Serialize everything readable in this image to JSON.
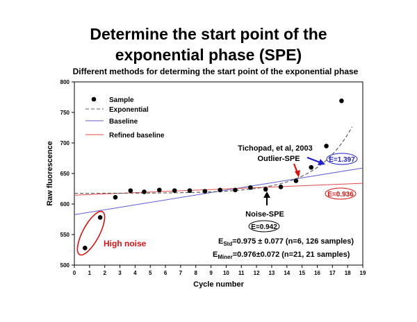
{
  "slide": {
    "title_line1": "Determine the start point of the",
    "title_line2": "exponential phase (SPE)"
  },
  "chart_data": {
    "type": "scatter",
    "title": "Different methods for determing the start point of the exponential phase",
    "xlabel": "Cycle number",
    "ylabel": "Raw fluorescence",
    "xlim": [
      0,
      19
    ],
    "ylim": [
      500,
      800
    ],
    "x_ticks": [
      0,
      1,
      2,
      3,
      4,
      5,
      6,
      7,
      8,
      9,
      10,
      11,
      12,
      13,
      14,
      15,
      16,
      17,
      18,
      19
    ],
    "y_ticks": [
      500,
      550,
      600,
      650,
      700,
      750,
      800
    ],
    "legend_position": "top-left",
    "legend": [
      {
        "label": "Sample",
        "marker": "dot",
        "color": "#000000"
      },
      {
        "label": "Exponential",
        "marker": "dashed-line",
        "color": "#555555"
      },
      {
        "label": "Baseline",
        "marker": "line",
        "color": "#5b5bd6"
      },
      {
        "label": "Refined baseline",
        "marker": "line",
        "color": "#e04848"
      }
    ],
    "series": [
      {
        "name": "Sample",
        "points": [
          [
            0.7,
            528
          ],
          [
            1.7,
            578
          ],
          [
            2.7,
            611
          ],
          [
            3.7,
            622
          ],
          [
            4.6,
            620
          ],
          [
            5.6,
            623
          ],
          [
            6.6,
            622
          ],
          [
            7.6,
            622
          ],
          [
            8.6,
            621
          ],
          [
            9.6,
            623
          ],
          [
            10.6,
            623
          ],
          [
            11.6,
            627
          ],
          [
            12.6,
            624
          ],
          [
            13.6,
            628
          ],
          [
            14.6,
            638
          ],
          [
            15.6,
            660
          ],
          [
            16.6,
            695
          ],
          [
            17.6,
            769
          ]
        ]
      },
      {
        "name": "Exponential",
        "style": "dashed",
        "model": {
          "base": 617.5,
          "amp": 0.43,
          "rate": 0.41,
          "shift": 4.8
        },
        "x_range": [
          0,
          18.3
        ]
      },
      {
        "name": "Baseline",
        "line": [
          [
            0,
            582.5
          ],
          [
            19,
            659
          ]
        ]
      },
      {
        "name": "Refined baseline",
        "line": [
          [
            0,
            614.5
          ],
          [
            19,
            634
          ]
        ]
      }
    ],
    "annotations": {
      "high_noise": "High noise",
      "tichopad": "Tichopad, et al, 2003",
      "outlier_spe": "Outlier-SPE",
      "noise_spe": "Noise-SPE",
      "e_blue": "E=1.397",
      "e_red": "E=0.936",
      "e_black": "E=0.942",
      "estd_sub": "Std",
      "estd_text": "=0.975 ± 0.077 (n=6, 126 samples)",
      "eminer_sub": "Miner",
      "eminer_text": "=0.976±0.072 (n=21, 21 samples)",
      "e_prefix": "E"
    },
    "colors": {
      "blue": "#2222cc",
      "red": "#dd1111",
      "baseline": "#5b5bd6",
      "refined": "#e04848",
      "exp": "#555555"
    }
  }
}
